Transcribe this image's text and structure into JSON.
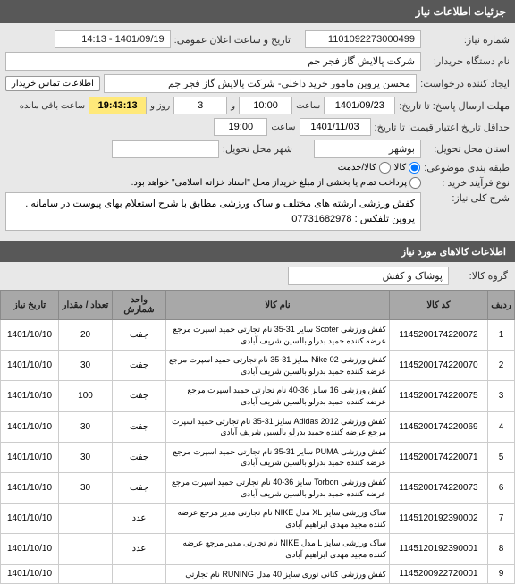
{
  "header": {
    "title": "جزئیات اطلاعات نیاز"
  },
  "form": {
    "need_no_label": "شماره نیاز:",
    "need_no": "1101092273000499",
    "announce_label": "تاریخ و ساعت اعلان عمومی:",
    "announce_value": "1401/09/19 - 14:13",
    "buyer_label": "نام دستگاه خریدار:",
    "buyer": "شرکت پالایش گاز فجر جم",
    "creator_label": "ایجاد کننده درخواست:",
    "creator": "محسن پروین مامور خرید داخلی- شرکت پالایش گاز فجر جم",
    "contact_btn": "اطلاعات تماس خریدار",
    "deadline_label": "مهلت ارسال پاسخ: تا تاریخ:",
    "deadline_date": "1401/09/23",
    "time_label": "ساعت",
    "deadline_time": "10:00",
    "and_label": "و",
    "days": "3",
    "days_label": "روز و",
    "countdown": "19:43:13",
    "remain_label": "ساعت باقی مانده",
    "validity_label": "حداقل تاریخ اعتبار قیمت: تا تاریخ:",
    "validity_date": "1401/11/03",
    "validity_time": "19:00",
    "province_label": "استان محل تحویل:",
    "province": "بوشهر",
    "city_label": "شهر محل تحویل:",
    "city": "",
    "class_label": "طبقه بندی موضوعی:",
    "class_goods": "کالا",
    "class_service": "کالا/خدمت",
    "process_label": "نوع فرآیند خرید :",
    "process_note": "پرداخت تمام یا بخشی از مبلغ خریداز محل \"اسناد خزانه اسلامی\" خواهد بود.",
    "desc_label": "شرح کلی نیاز:",
    "desc": "کفش ورزشی ارشته های مختلف و ساک ورزشی مطابق با شرح استعلام بهای پیوست در سامانه .\nپروین   تلفکس : 07731682978",
    "items_header": "اطلاعات کالاهای مورد نیاز",
    "group_label": "گروه کالا:",
    "group": "پوشاک و کفش"
  },
  "table": {
    "headers": [
      "ردیف",
      "کد کالا",
      "نام کالا",
      "واحد شمارش",
      "تعداد / مقدار",
      "تاریخ نیاز"
    ],
    "rows": [
      {
        "n": "1",
        "code": "1145200174220072",
        "name": "کفش ورزشی Scoter سایز 31-35 نام تجارتی حمید اسپرت مرجع عرضه کننده حمید بدرلو بالسین شریف آبادی",
        "unit": "جفت",
        "qty": "20",
        "date": "1401/10/10"
      },
      {
        "n": "2",
        "code": "1145200174220070",
        "name": "کفش ورزشی Nike 02 سایز 31-35 نام تجارتی حمید اسپرت مرجع عرضه کننده حمید بدرلو بالسین شریف آبادی",
        "unit": "جفت",
        "qty": "30",
        "date": "1401/10/10"
      },
      {
        "n": "3",
        "code": "1145200174220075",
        "name": "کفش ورزشی 16 سایز 36-40 نام تجارتی حمید اسپرت مرجع عرضه کننده حمید بدرلو بالسین شریف آبادی",
        "unit": "جفت",
        "qty": "100",
        "date": "1401/10/10"
      },
      {
        "n": "4",
        "code": "1145200174220069",
        "name": "کفش ورزشی Adidas 2012 سایز 31-35 نام تجارتی حمید اسپرت مرجع عرضه کننده حمید بدرلو بالسین شریف آبادی",
        "unit": "جفت",
        "qty": "30",
        "date": "1401/10/10"
      },
      {
        "n": "5",
        "code": "1145200174220071",
        "name": "کفش ورزشی PUMA سایز 31-35 نام تجارتی حمید اسپرت مرجع عرضه کننده حمید بدرلو بالسین شریف آبادی",
        "unit": "جفت",
        "qty": "30",
        "date": "1401/10/10"
      },
      {
        "n": "6",
        "code": "1145200174220073",
        "name": "کفش ورزشی Torbon سایز 36-40 نام تجارتی حمید اسپرت مرجع عرضه کننده حمید بدرلو بالسین شریف آبادی",
        "unit": "جفت",
        "qty": "30",
        "date": "1401/10/10"
      },
      {
        "n": "7",
        "code": "1145120192390002",
        "name": "ساک ورزشی سایز XL مدل NIKE نام تجارتی مدیر مرجع عرضه کننده مجید مهدی ابراهیم آبادی",
        "unit": "عدد",
        "qty": "",
        "date": "1401/10/10"
      },
      {
        "n": "8",
        "code": "1145120192390001",
        "name": "ساک ورزشی سایز L مدل NIKE نام تجارتی مدیر مرجع عرضه کننده مجید مهدی ابراهیم آبادی",
        "unit": "عدد",
        "qty": "",
        "date": "1401/10/10"
      },
      {
        "n": "9",
        "code": "1145200922720001",
        "name": "کفش ورزشی کتانی توری سایز 40 مدل RUNING نام تجارتی",
        "unit": "",
        "qty": "",
        "date": "1401/10/10"
      }
    ]
  }
}
